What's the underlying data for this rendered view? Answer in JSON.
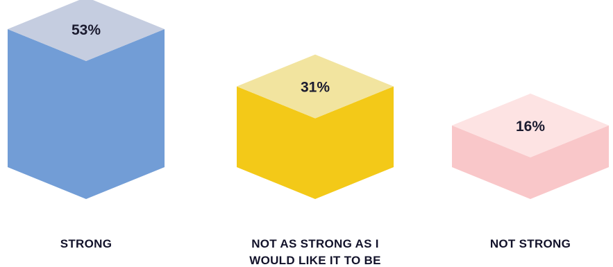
{
  "chart_data": {
    "type": "bar",
    "categories": [
      [
        "STRONG"
      ],
      [
        "NOT AS STRONG AS I",
        "WOULD LIKE IT TO BE"
      ],
      [
        "NOT STRONG"
      ]
    ],
    "values": [
      53,
      31,
      16
    ],
    "value_labels": [
      "53%",
      "31%",
      "16%"
    ],
    "colors": [
      {
        "top": "#c5cde0",
        "left": "#729dd6",
        "right": "#729dd6"
      },
      {
        "top": "#f2e49f",
        "left": "#f3c918",
        "right": "#f3c918"
      },
      {
        "top": "#fde3e3",
        "left": "#f9c7c9",
        "right": "#f9c7c9"
      }
    ],
    "title": "",
    "xlabel": "",
    "ylabel": "",
    "grid": false,
    "legend": "none"
  }
}
